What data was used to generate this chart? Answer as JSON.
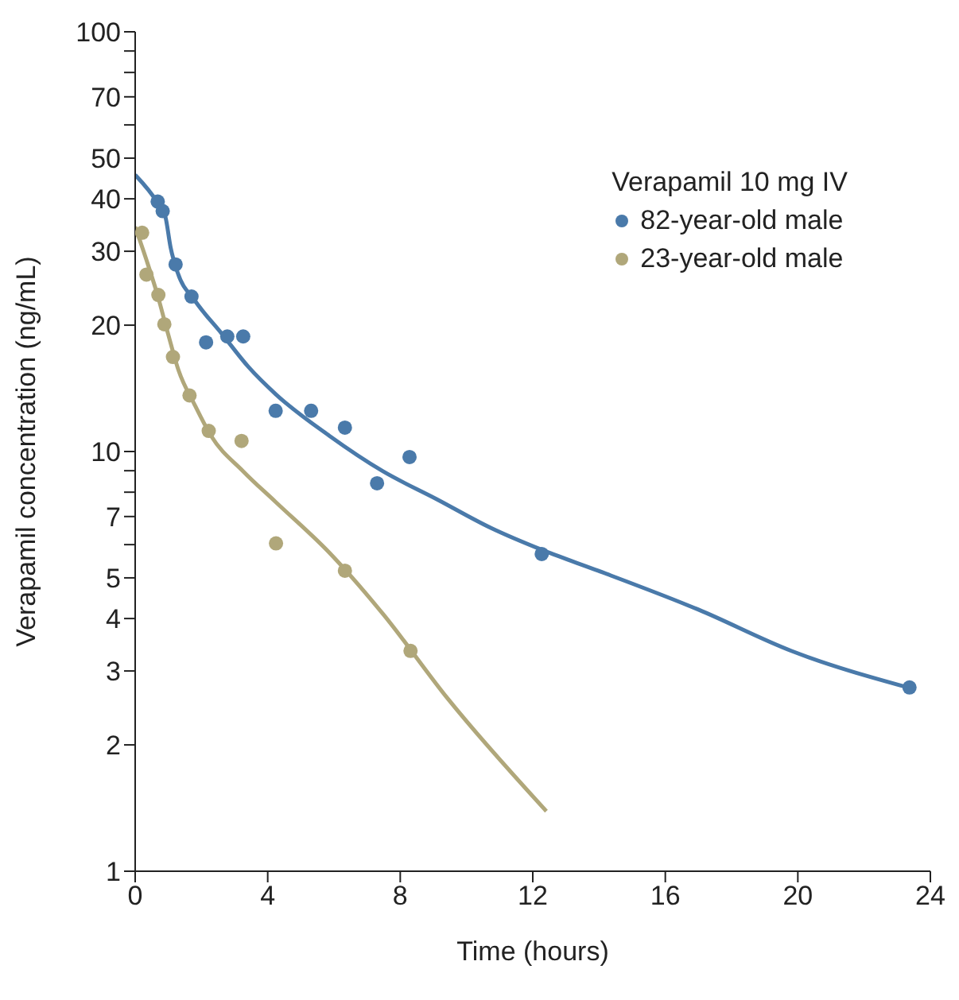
{
  "chart_data": {
    "type": "scatter",
    "xlabel": "Time (hours)",
    "ylabel": "Verapamil concentration (ng/mL)",
    "legend_title": "Verapamil 10 mg IV",
    "legend": "top right",
    "log": "y",
    "grid": false,
    "xlim": [
      0,
      24
    ],
    "xticks": [
      0,
      4,
      8,
      12,
      16,
      20,
      24
    ],
    "ylim": [
      1,
      100
    ],
    "yticks": [
      1,
      2,
      3,
      4,
      5,
      {
        "value": 6,
        "label": null
      },
      7,
      {
        "value": 8,
        "label": null
      },
      {
        "value": 9,
        "label": null
      },
      10,
      20,
      30,
      40,
      50,
      {
        "value": 60,
        "label": null
      },
      70,
      {
        "value": 80,
        "label": null
      },
      {
        "value": 90,
        "label": null
      },
      100
    ],
    "series": [
      {
        "name": "82-year-old male",
        "marker": "circle",
        "color": "#4a7aaa",
        "x": [
          0.68,
          0.83,
          1.22,
          1.7,
          2.14,
          2.78,
          3.26,
          4.24,
          5.31,
          6.33,
          7.3,
          8.28,
          12.27,
          23.37
        ],
        "values": [
          39.4,
          37.4,
          27.9,
          23.4,
          18.2,
          18.8,
          18.8,
          12.5,
          12.5,
          11.4,
          8.4,
          9.7,
          5.7,
          2.74
        ]
      },
      {
        "name": "23-year-old male",
        "marker": "circle",
        "color": "#b0a77a",
        "x": [
          0.21,
          0.34,
          0.7,
          0.88,
          1.14,
          1.64,
          2.22,
          3.21,
          4.25,
          6.33,
          8.31
        ],
        "values": [
          33.2,
          26.4,
          23.6,
          20.1,
          16.8,
          13.6,
          11.2,
          10.6,
          6.04,
          5.2,
          3.35
        ]
      },
      {
        "type": "line",
        "marker": "none",
        "line_style": "solid",
        "color": "#4a7aaa",
        "x": [
          0,
          0.66,
          0.91,
          1.07,
          1.28,
          1.8,
          2.61,
          3.42,
          4.24,
          5.86,
          7.48,
          9.1,
          10.73,
          12.35,
          13.97,
          17,
          19.8,
          23.4
        ],
        "values": [
          45.6,
          39.3,
          36.3,
          30.6,
          26.7,
          22.9,
          19.1,
          15.9,
          13.7,
          10.9,
          8.97,
          7.7,
          6.58,
          5.8,
          5.2,
          4.2,
          3.35,
          2.73
        ]
      },
      {
        "type": "line",
        "marker": "none",
        "line_style": "solid",
        "color": "#b0a77a",
        "x": [
          0,
          0.34,
          0.66,
          0.99,
          1.31,
          1.8,
          2.29,
          3.26,
          4.24,
          5.86,
          7.48,
          9.43,
          12.41
        ],
        "values": [
          34.3,
          28.6,
          23.8,
          19.1,
          15.6,
          12.9,
          10.9,
          8.97,
          7.58,
          5.74,
          4.1,
          2.58,
          1.39
        ]
      }
    ]
  }
}
